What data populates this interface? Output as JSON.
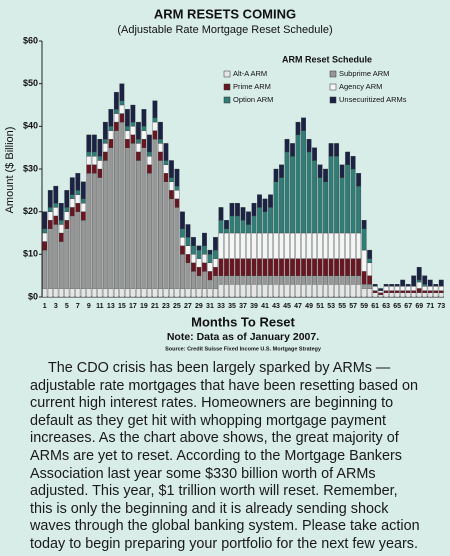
{
  "chart_data": {
    "type": "bar",
    "stacked": true,
    "title": "ARM RESETS COMING",
    "subtitle": "(Adjustable Rate Mortgage Reset Schedule)",
    "y_label": "Amount ($ Billion)",
    "x_label": "Months To Reset",
    "note": "Note: Data as of January 2007.",
    "source": "Source: Credit Suisse Fixed Income U.S. Mortgage Strategy",
    "legend_title": "ARM Reset Schedule",
    "grid": false,
    "ylim": [
      0,
      60
    ],
    "yticks": [
      {
        "value": 0,
        "label": "$0"
      },
      {
        "value": 10,
        "label": "$10"
      },
      {
        "value": 20,
        "label": "$20"
      },
      {
        "value": 30,
        "label": "$30"
      },
      {
        "value": 40,
        "label": "$40"
      },
      {
        "value": 50,
        "label": "$50"
      },
      {
        "value": 60,
        "label": "$60"
      }
    ],
    "categories": [
      "1",
      null,
      "3",
      null,
      "5",
      null,
      "7",
      null,
      "9",
      null,
      "11",
      null,
      "13",
      null,
      "15",
      null,
      "17",
      null,
      "19",
      null,
      "21",
      null,
      "23",
      null,
      "25",
      null,
      "27",
      null,
      "29",
      null,
      "31",
      null,
      "33",
      null,
      "35",
      null,
      "37",
      null,
      "39",
      null,
      "41",
      null,
      "43",
      null,
      "45",
      null,
      "47",
      null,
      "49",
      null,
      "51",
      null,
      "53",
      null,
      "55",
      null,
      "57",
      null,
      "59",
      null,
      "61",
      null,
      "63",
      null,
      "65",
      null,
      "67",
      null,
      "69",
      null,
      "71",
      null,
      "73"
    ],
    "series": [
      {
        "name": "Alt-A ARM",
        "color": "#e6e6e6",
        "values": [
          2,
          2,
          2,
          2,
          2,
          2,
          2,
          2,
          2,
          2,
          2,
          2,
          2,
          2,
          2,
          2,
          2,
          2,
          2,
          2,
          2,
          2,
          2,
          2,
          2,
          2,
          2,
          2,
          2,
          2,
          2,
          2,
          3,
          3,
          3,
          3,
          3,
          3,
          3,
          3,
          3,
          3,
          3,
          3,
          3,
          3,
          3,
          3,
          3,
          3,
          3,
          3,
          3,
          3,
          3,
          3,
          3,
          3,
          2,
          2,
          1,
          0.5,
          1,
          1,
          1,
          1,
          1,
          1,
          1,
          1,
          1,
          1,
          1
        ]
      },
      {
        "name": "Subprime ARM",
        "color": "#979797",
        "values": [
          9,
          14,
          15,
          11,
          14,
          17,
          18,
          16,
          27,
          27,
          26,
          30,
          33,
          37,
          39,
          33,
          34,
          30,
          33,
          27,
          35,
          30,
          25,
          21,
          19,
          8,
          6,
          4,
          3,
          4,
          2,
          3,
          2,
          2,
          2,
          2,
          2,
          2,
          2,
          2,
          2,
          2,
          2,
          2,
          2,
          2,
          2,
          2,
          2,
          2,
          2,
          2,
          2,
          2,
          2,
          2,
          2,
          2,
          1,
          1,
          0,
          0,
          0,
          0,
          0,
          0,
          0,
          0,
          0,
          0,
          0,
          0,
          0
        ]
      },
      {
        "name": "Prime ARM",
        "color": "#6a1521",
        "values": [
          2,
          2,
          2,
          2,
          2,
          2,
          2,
          2,
          2,
          2,
          2,
          2,
          2,
          2,
          2,
          2,
          2,
          2,
          2,
          2,
          2,
          2,
          2,
          2,
          2,
          2,
          2,
          2,
          2,
          2,
          2,
          2,
          4,
          4,
          4,
          4,
          4,
          4,
          4,
          4,
          4,
          4,
          4,
          4,
          4,
          4,
          4,
          4,
          4,
          4,
          4,
          4,
          4,
          4,
          4,
          4,
          4,
          4,
          3,
          2,
          0.5,
          0.5,
          0.5,
          0.5,
          0.5,
          0.5,
          0.5,
          0.5,
          1,
          0.5,
          0.5,
          0.5,
          0.5
        ]
      },
      {
        "name": "Agency ARM",
        "color": "#f5f5f5",
        "values": [
          2,
          2,
          2,
          2,
          2,
          2,
          2,
          2,
          2,
          2,
          2,
          2,
          2,
          2,
          2,
          2,
          2,
          2,
          2,
          2,
          2,
          2,
          2,
          2,
          2,
          2,
          2,
          2,
          2,
          2,
          2,
          2,
          6,
          6,
          6,
          6,
          6,
          6,
          6,
          6,
          6,
          6,
          6,
          6,
          6,
          6,
          6,
          6,
          6,
          6,
          6,
          6,
          6,
          6,
          6,
          6,
          6,
          6,
          5,
          3,
          1,
          0.5,
          1,
          1,
          1,
          1,
          1,
          1,
          1.5,
          1,
          1,
          1,
          1
        ]
      },
      {
        "name": "Option ARM",
        "color": "#2e7d77",
        "values": [
          1,
          1,
          1,
          1,
          1,
          1,
          1,
          1,
          1,
          1,
          1,
          1,
          1,
          1,
          1,
          1,
          1,
          1,
          1,
          1,
          1,
          1,
          1,
          1,
          1,
          2,
          2,
          2,
          2,
          2,
          2,
          2,
          3,
          1,
          4,
          4,
          3,
          2,
          4,
          6,
          5,
          6,
          12,
          13,
          19,
          18,
          23,
          24,
          19,
          17,
          13,
          12,
          18,
          18,
          13,
          16,
          15,
          11,
          5,
          1,
          0,
          0,
          0,
          0,
          0,
          0,
          0,
          0,
          0.5,
          0.5,
          0,
          0,
          0
        ]
      },
      {
        "name": "Unsecuritized ARMs",
        "color": "#1b2344",
        "values": [
          4,
          4,
          4,
          4,
          4,
          4,
          4,
          4,
          4,
          4,
          4,
          4,
          4,
          4,
          4,
          4,
          4,
          4,
          4,
          4,
          4,
          4,
          4,
          4,
          4,
          4,
          3,
          2,
          1,
          3,
          1,
          3,
          3,
          2,
          3,
          3,
          3,
          3,
          3,
          3,
          3,
          3,
          3,
          3,
          3,
          3,
          3,
          3,
          3,
          3,
          3,
          3,
          3,
          3,
          3,
          3,
          3,
          3,
          2,
          2,
          0.5,
          0.5,
          0.5,
          0.5,
          0.5,
          1.5,
          0.5,
          2.5,
          3,
          2,
          1.5,
          0.5,
          1.5
        ]
      }
    ]
  },
  "body_text": "The CDO crisis has been largely sparked by ARMs — adjustable rate mortgages that have been resetting based on current high interest rates. Homeowners are beginning to default as they get hit with whopping mortgage payment increases. As the chart above shows, the great majority of ARMs are yet to reset. According to the Mortgage Bankers Association last year some $330 billion worth of ARMs adjusted. This year, $1 trillion worth will reset. Remember, this is only the beginning and it is already sending shock waves through the global banking system. Please take action today to begin preparing your portfolio for the next few years."
}
